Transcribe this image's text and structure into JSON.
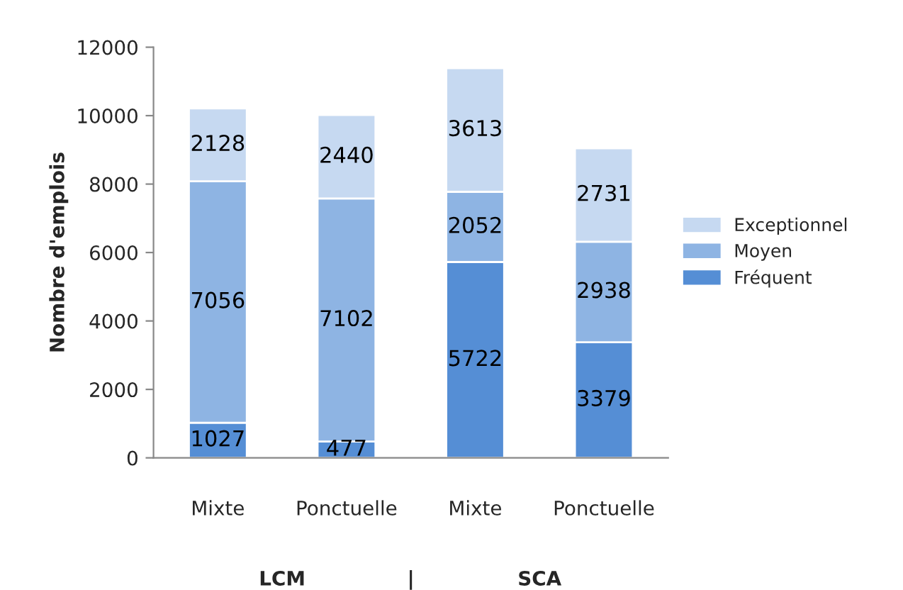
{
  "chart_data": {
    "type": "bar",
    "stacked": true,
    "ylabel": "Nombre d'emplois",
    "categories": [
      "Mixte",
      "Ponctuelle",
      "Mixte",
      "Ponctuelle"
    ],
    "series": [
      {
        "name": "Fréquent",
        "color": "#558ed5",
        "values": [
          1027,
          477,
          5722,
          3379
        ]
      },
      {
        "name": "Moyen",
        "color": "#8eb4e3",
        "values": [
          7056,
          7102,
          2052,
          2938
        ]
      },
      {
        "name": "Exceptionnel",
        "color": "#c6d9f1",
        "values": [
          2128,
          2440,
          3613,
          2731
        ]
      }
    ],
    "ylim": [
      0,
      12000
    ],
    "yticks": [
      0,
      2000,
      4000,
      6000,
      8000,
      10000,
      12000
    ],
    "data_labels": true,
    "legend": "right",
    "grid": false,
    "annotations": [
      "LCM",
      "|",
      "SCA"
    ]
  }
}
